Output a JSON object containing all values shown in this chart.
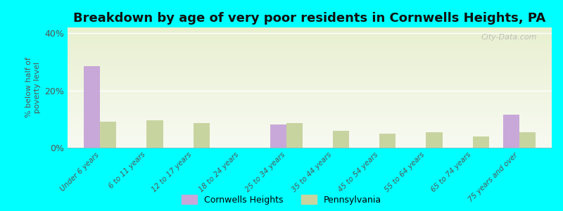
{
  "title": "Breakdown by age of very poor residents in Cornwells Heights, PA",
  "ylabel": "% below half of\npoverty level",
  "categories": [
    "Under 6 years",
    "6 to 11 years",
    "12 to 17 years",
    "18 to 24 years",
    "25 to 34 years",
    "35 to 44 years",
    "45 to 54 years",
    "55 to 64 years",
    "65 to 74 years",
    "75 years and over"
  ],
  "cornwells_values": [
    28.5,
    0,
    0,
    0,
    8.0,
    0,
    0,
    0,
    0,
    11.5
  ],
  "pennsylvania_values": [
    9.0,
    9.5,
    8.5,
    0,
    8.5,
    6.0,
    5.0,
    5.5,
    4.0,
    5.5
  ],
  "cornwells_color": "#c8a8d8",
  "pennsylvania_color": "#c8d4a0",
  "background_color": "#00ffff",
  "plot_bg_color_top": "#e8f0d0",
  "plot_bg_color_bottom": "#f8faf2",
  "ylim": [
    0,
    42
  ],
  "yticks": [
    0,
    20,
    40
  ],
  "ytick_labels": [
    "0%",
    "20%",
    "40%"
  ],
  "bar_width": 0.35,
  "title_fontsize": 13,
  "axis_label_color": "#555555",
  "legend_labels": [
    "Cornwells Heights",
    "Pennsylvania"
  ],
  "grid_color": "#ffffff",
  "watermark": "City-Data.com"
}
